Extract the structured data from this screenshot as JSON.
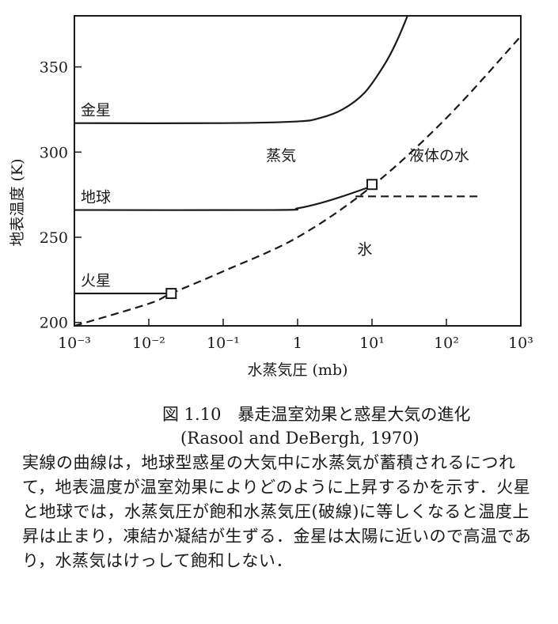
{
  "chart_data": {
    "type": "line",
    "xlabel": "水蒸気圧 (mb)",
    "ylabel": "地表温度 (K)",
    "xscale": "log",
    "xlim": [
      0.001,
      1000
    ],
    "ylim": [
      198,
      380
    ],
    "xticks": [
      {
        "v": 0.001,
        "label": "10⁻³"
      },
      {
        "v": 0.01,
        "label": "10⁻²"
      },
      {
        "v": 0.1,
        "label": "10⁻¹"
      },
      {
        "v": 1,
        "label": "1"
      },
      {
        "v": 10,
        "label": "10¹"
      },
      {
        "v": 100,
        "label": "10²"
      },
      {
        "v": 1000,
        "label": "10³"
      }
    ],
    "yticks": [
      200,
      250,
      300,
      350
    ],
    "grid": false,
    "series": [
      {
        "name": "金星",
        "style": "solid",
        "x": [
          0.001,
          0.1,
          1,
          2,
          4,
          8,
          15,
          22,
          30
        ],
        "y": [
          317,
          317,
          318,
          320,
          325,
          335,
          352,
          366,
          380
        ]
      },
      {
        "name": "地球",
        "style": "solid",
        "x": [
          0.001,
          0.5,
          1,
          2,
          4,
          10
        ],
        "y": [
          266,
          266,
          267,
          270,
          274,
          280
        ]
      },
      {
        "name": "火星",
        "style": "solid",
        "x": [
          0.001,
          0.02
        ],
        "y": [
          217,
          217
        ]
      },
      {
        "name": "",
        "style": "dashed",
        "x": [
          0.001,
          0.01,
          0.02,
          0.1,
          1,
          10,
          100,
          1000
        ],
        "y": [
          198,
          211,
          217,
          230,
          250,
          280,
          320,
          368
        ]
      },
      {
        "name": "",
        "style": "dashed",
        "x": [
          6,
          300
        ],
        "y": [
          274,
          274
        ]
      }
    ],
    "markers": [
      {
        "x": 0.02,
        "y": 217
      },
      {
        "x": 10,
        "y": 281
      }
    ],
    "region_labels": [
      {
        "text": "蒸気",
        "x": 0.6,
        "y": 295
      },
      {
        "text": "液体の水",
        "x": 80,
        "y": 295
      },
      {
        "text": "氷",
        "x": 8,
        "y": 240
      }
    ]
  },
  "caption": {
    "title": "図 1.10　暴走温室効果と惑星大気の進化",
    "source": "(Rasool and DeBergh, 1970)",
    "body": "実線の曲線は，地球型惑星の大気中に水蒸気が蓄積されるにつれて，地表温度が温室効果によりどのように上昇するかを示す．火星と地球では，水蒸気圧が飽和水蒸気圧(破線)に等しくなると温度上昇は止まり，凍結か凝結が生ずる．金星は太陽に近いので高温であり，水蒸気はけっして飽和しない．"
  }
}
